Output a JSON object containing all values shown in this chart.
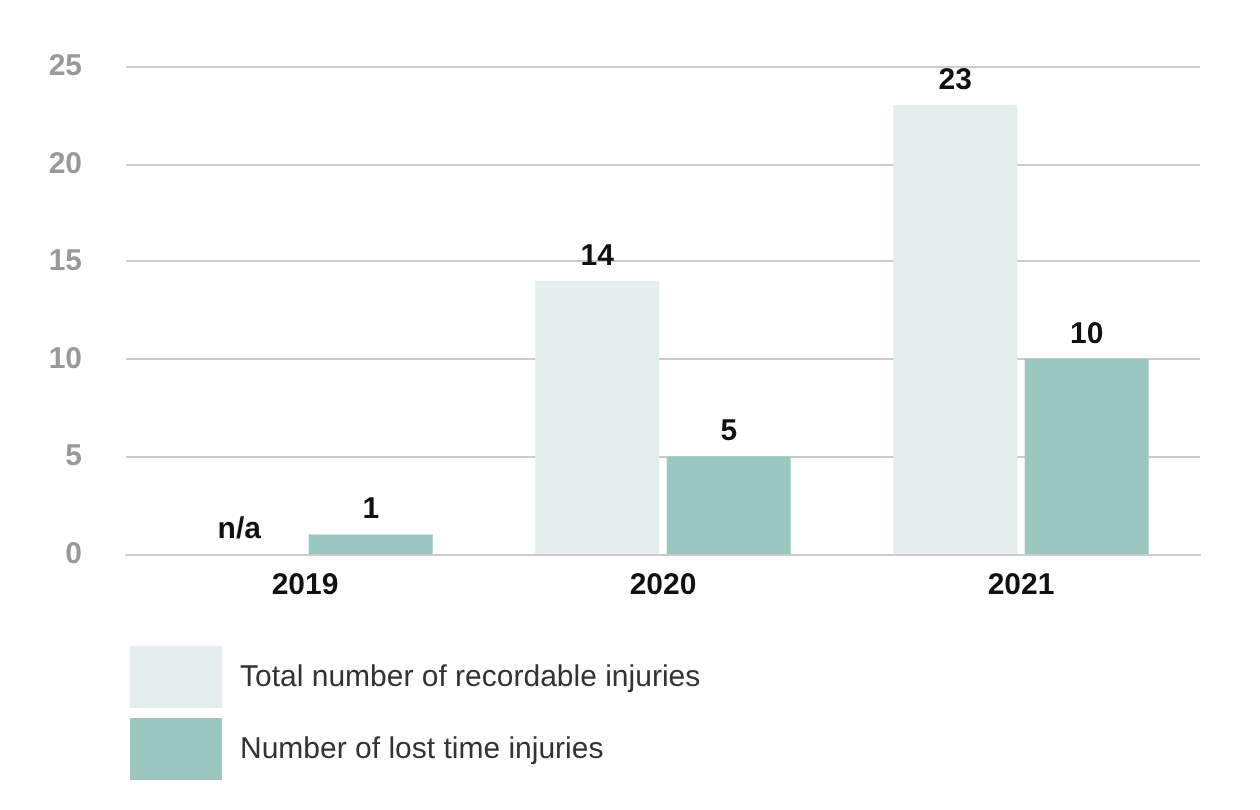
{
  "chart_data": {
    "type": "bar",
    "categories": [
      "2019",
      "2020",
      "2021"
    ],
    "series": [
      {
        "name": "Total number of recordable injuries",
        "color": "#e4eeec",
        "values": [
          null,
          14,
          23
        ],
        "value_labels": [
          "n/a",
          "14",
          "23"
        ]
      },
      {
        "name": "Number of lost time injuries",
        "color": "#9ac8c1",
        "values": [
          1,
          5,
          10
        ],
        "value_labels": [
          "1",
          "5",
          "10"
        ]
      }
    ],
    "ylim": [
      0,
      25
    ],
    "yticks": [
      0,
      5,
      10,
      15,
      20,
      25
    ],
    "grid": "y",
    "legend": "bottom left"
  }
}
